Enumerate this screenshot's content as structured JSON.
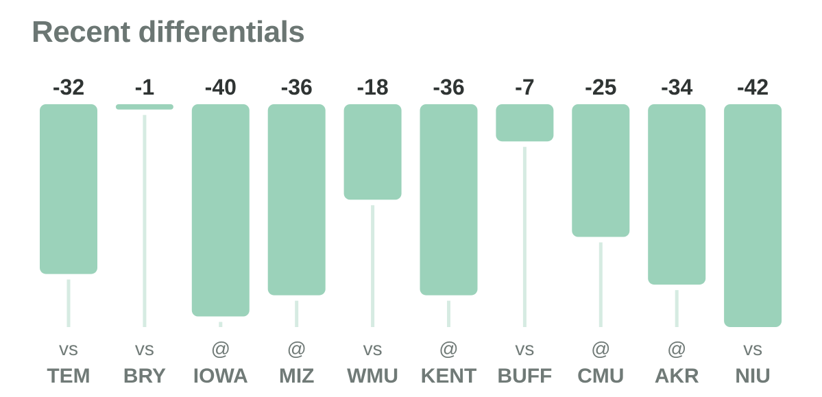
{
  "title": "Recent differentials",
  "colors": {
    "bar": "#9bd2ba",
    "track": "#d6ebe2",
    "value_text": "#2f3433",
    "label_text": "#707a77"
  },
  "chart_data": {
    "type": "bar",
    "title": "Recent differentials",
    "categories": [
      "TEM",
      "BRY",
      "IOWA",
      "MIZ",
      "WMU",
      "KENT",
      "BUFF",
      "CMU",
      "AKR",
      "NIU"
    ],
    "sites": [
      "vs",
      "vs",
      "@",
      "@",
      "vs",
      "@",
      "vs",
      "@",
      "@",
      "vs"
    ],
    "values": [
      -32,
      -1,
      -40,
      -36,
      -18,
      -36,
      -7,
      -25,
      -34,
      -42
    ],
    "value_labels": [
      "-32",
      "-1",
      "-40",
      "-36",
      "-18",
      "-36",
      "-7",
      "-25",
      "-34",
      "-42"
    ],
    "ylim": [
      -42,
      0
    ],
    "grid": false,
    "legend": "none",
    "xlabel": "",
    "ylabel": ""
  }
}
